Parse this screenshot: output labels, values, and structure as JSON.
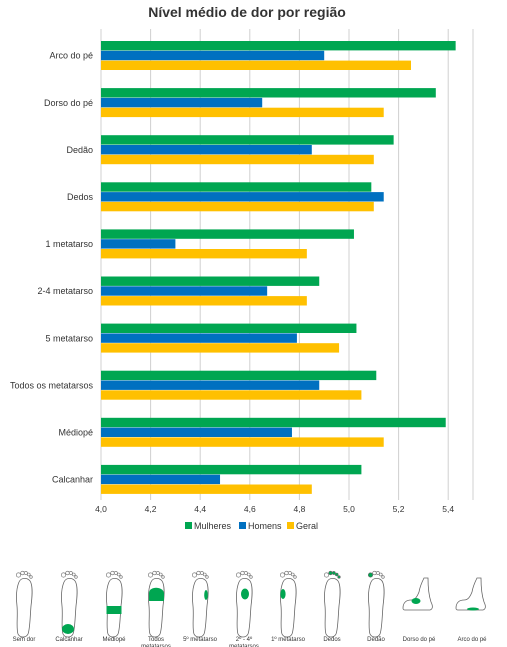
{
  "chart_data": {
    "type": "bar",
    "orientation": "horizontal",
    "title": "Nível médio de dor por região",
    "categories": [
      "Arco do pé",
      "Dorso do pé",
      "Dedão",
      "Dedos",
      "1 metatarso",
      "2-4 metatarso",
      "5 metatarso",
      "Todos os metatarsos",
      "Médiopé",
      "Calcanhar"
    ],
    "series": [
      {
        "name": "Mulheres",
        "color": "#00a651",
        "values": [
          5.43,
          5.35,
          5.18,
          5.09,
          5.02,
          4.88,
          5.03,
          5.11,
          5.39,
          5.05
        ]
      },
      {
        "name": "Homens",
        "color": "#0070c0",
        "values": [
          4.9,
          4.65,
          4.85,
          5.14,
          4.3,
          4.67,
          4.79,
          4.88,
          4.77,
          4.48
        ]
      },
      {
        "name": "Geral",
        "color": "#ffc000",
        "values": [
          5.25,
          5.14,
          5.1,
          5.1,
          4.83,
          4.83,
          4.96,
          5.05,
          5.14,
          4.85
        ]
      }
    ],
    "xlim": [
      4.0,
      5.5
    ],
    "xticks": [
      "4,0",
      "4,2",
      "4,4",
      "4,6",
      "4,8",
      "5,0",
      "5,2",
      "5,4"
    ],
    "grid": true,
    "legend_position": "bottom"
  },
  "foot_legend": {
    "highlight_color": "#00a651",
    "items": [
      {
        "label": [
          "Sem dor"
        ],
        "region": "none"
      },
      {
        "label": [
          "Calcanhar"
        ],
        "region": "calcanhar"
      },
      {
        "label": [
          "Mediopé"
        ],
        "region": "mediope"
      },
      {
        "label": [
          "Todos",
          "metatarsos"
        ],
        "region": "todos"
      },
      {
        "label": [
          "5º metatarso"
        ],
        "region": "m5"
      },
      {
        "label": [
          "2º - 4º",
          "metatarsos"
        ],
        "region": "m24"
      },
      {
        "label": [
          "1º metatarso"
        ],
        "region": "m1"
      },
      {
        "label": [
          "Dedos"
        ],
        "region": "dedos"
      },
      {
        "label": [
          "Dedão"
        ],
        "region": "dedao"
      },
      {
        "label": [
          "Dorso do pé"
        ],
        "region": "dorso"
      },
      {
        "label": [
          "Arco do pé"
        ],
        "region": "arco"
      }
    ]
  }
}
